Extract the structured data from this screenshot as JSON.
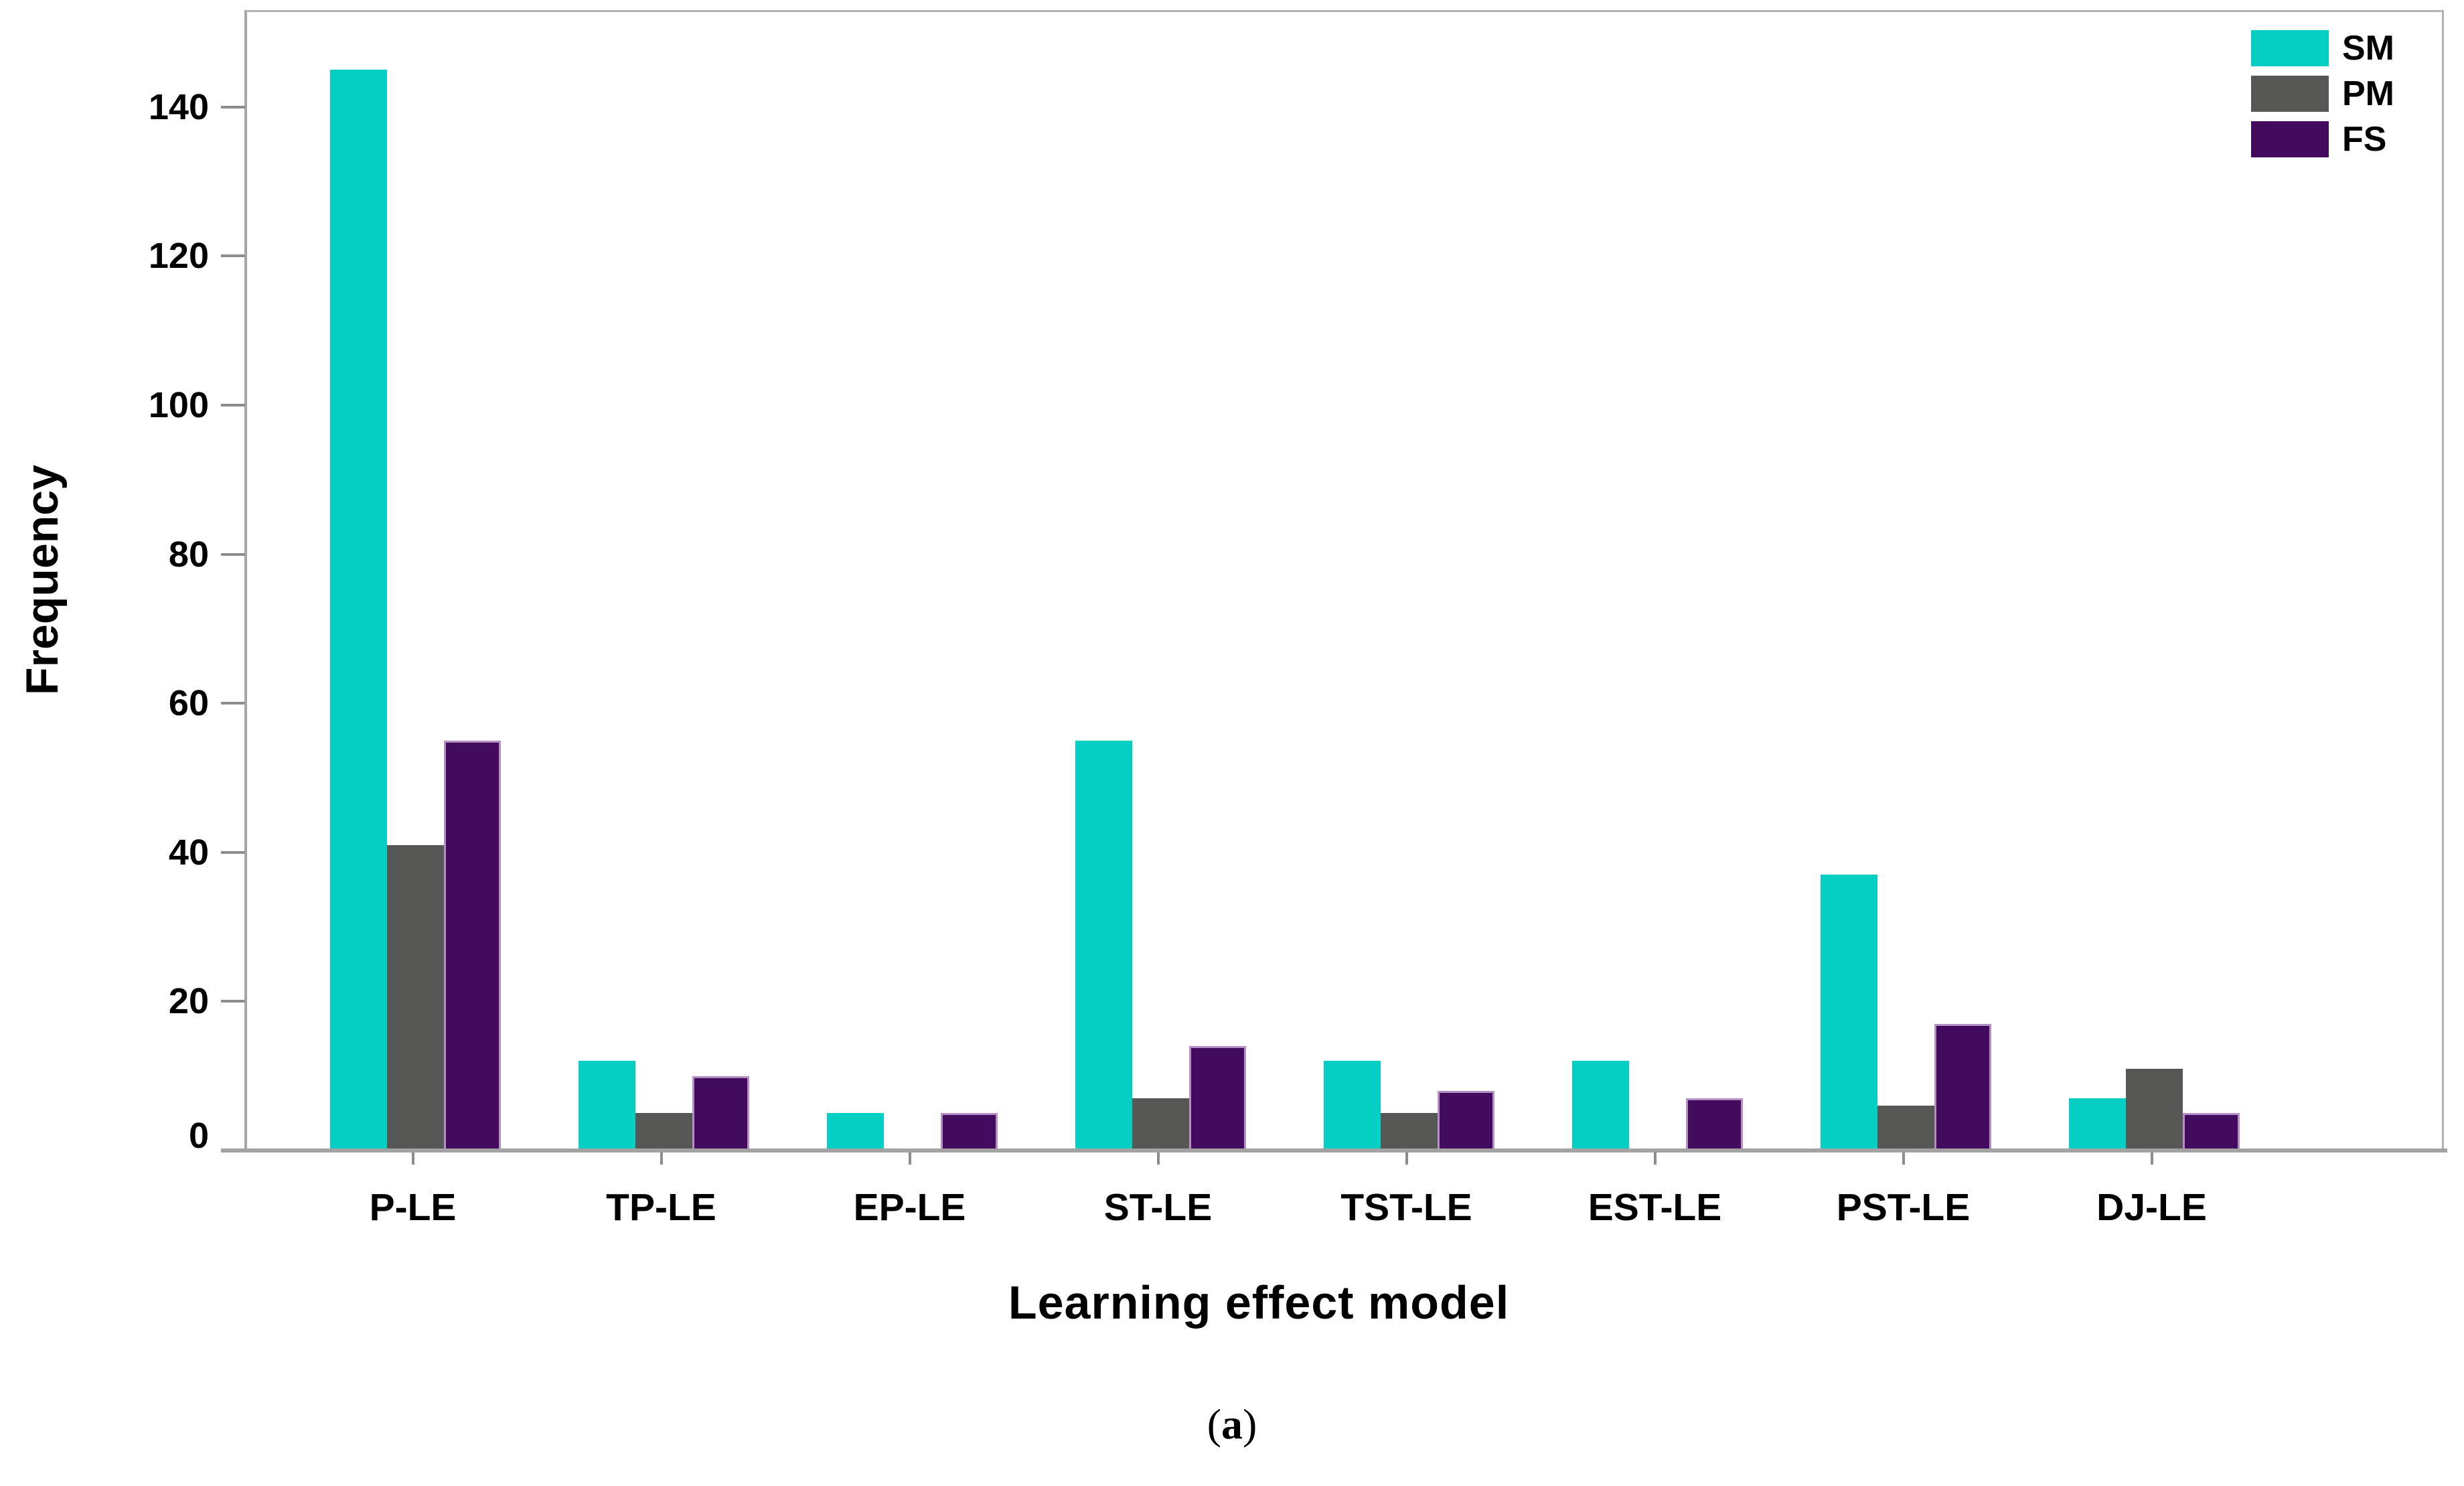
{
  "chart_data": {
    "type": "bar",
    "title": "",
    "xlabel": "Learning effect model",
    "ylabel": "Frequency",
    "caption_prefix": "(",
    "caption_letter": "a",
    "caption_suffix": ")",
    "categories": [
      "P-LE",
      "TP-LE",
      "EP-LE",
      "ST-LE",
      "TST-LE",
      "EST-LE",
      "PST-LE",
      "DJ-LE"
    ],
    "series": [
      {
        "name": "SM",
        "color": "#05CFC3",
        "edge": "",
        "values": [
          145,
          12,
          5,
          55,
          12,
          12,
          37,
          7
        ]
      },
      {
        "name": "PM",
        "color": "#575756",
        "edge": "",
        "values": [
          41,
          5,
          0,
          7,
          5,
          0,
          6,
          11
        ]
      },
      {
        "name": "FS",
        "color": "#430B5E",
        "edge": "#B490C6",
        "values": [
          55,
          10,
          5,
          14,
          8,
          7,
          17,
          5
        ]
      }
    ],
    "ylim": [
      0,
      153
    ],
    "yticks": [
      0,
      20,
      40,
      60,
      80,
      100,
      120,
      140
    ],
    "legend_position": "top-right",
    "grid": false,
    "axis_color": "#a3a3a3",
    "text_color": "#000000"
  }
}
